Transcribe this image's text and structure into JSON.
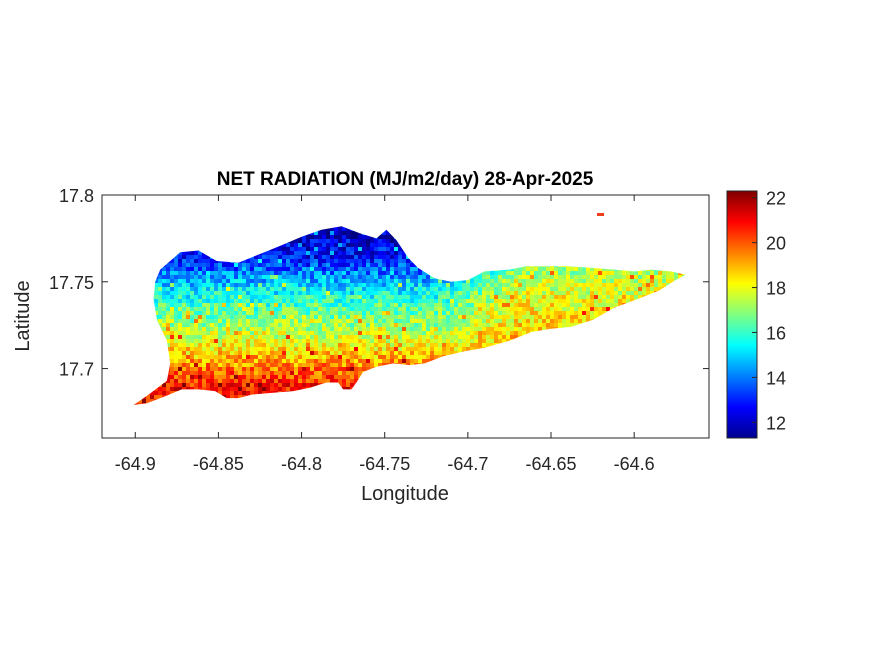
{
  "chart_data": {
    "type": "heatmap",
    "title": "NET RADIATION (MJ/m2/day) 28-Apr-2025",
    "xlabel": "Longitude",
    "ylabel": "Latitude",
    "xlim": [
      -64.92,
      -64.555
    ],
    "ylim": [
      17.66,
      17.8
    ],
    "x_ticks": [
      {
        "value": -64.9,
        "label": "-64.9"
      },
      {
        "value": -64.85,
        "label": "-64.85"
      },
      {
        "value": -64.8,
        "label": "-64.8"
      },
      {
        "value": -64.75,
        "label": "-64.75"
      },
      {
        "value": -64.7,
        "label": "-64.7"
      },
      {
        "value": -64.65,
        "label": "-64.65"
      },
      {
        "value": -64.6,
        "label": "-64.6"
      }
    ],
    "y_ticks": [
      {
        "value": 17.7,
        "label": "17.7"
      },
      {
        "value": 17.75,
        "label": "17.75"
      },
      {
        "value": 17.8,
        "label": "17.8"
      }
    ],
    "colorbar": {
      "colormap": "jet",
      "range": [
        11.3,
        22.3
      ],
      "ticks": [
        {
          "value": 12,
          "label": "12"
        },
        {
          "value": 14,
          "label": "14"
        },
        {
          "value": 16,
          "label": "16"
        },
        {
          "value": 18,
          "label": "18"
        },
        {
          "value": 20,
          "label": "20"
        },
        {
          "value": 22,
          "label": "22"
        }
      ]
    },
    "island_outline": [
      [
        -64.901,
        17.679
      ],
      [
        -64.892,
        17.685
      ],
      [
        -64.881,
        17.693
      ],
      [
        -64.879,
        17.703
      ],
      [
        -64.881,
        17.716
      ],
      [
        -64.887,
        17.728
      ],
      [
        -64.889,
        17.74
      ],
      [
        -64.888,
        17.75
      ],
      [
        -64.885,
        17.757
      ],
      [
        -64.879,
        17.762
      ],
      [
        -64.873,
        17.767
      ],
      [
        -64.862,
        17.768
      ],
      [
        -64.851,
        17.762
      ],
      [
        -64.838,
        17.761
      ],
      [
        -64.825,
        17.766
      ],
      [
        -64.812,
        17.771
      ],
      [
        -64.8,
        17.776
      ],
      [
        -64.788,
        17.78
      ],
      [
        -64.776,
        17.782
      ],
      [
        -64.765,
        17.778
      ],
      [
        -64.755,
        17.775
      ],
      [
        -64.749,
        17.78
      ],
      [
        -64.743,
        17.774
      ],
      [
        -64.736,
        17.764
      ],
      [
        -64.73,
        17.758
      ],
      [
        -64.72,
        17.752
      ],
      [
        -64.71,
        17.75
      ],
      [
        -64.7,
        17.751
      ],
      [
        -64.69,
        17.756
      ],
      [
        -64.675,
        17.757
      ],
      [
        -64.665,
        17.759
      ],
      [
        -64.655,
        17.759
      ],
      [
        -64.64,
        17.759
      ],
      [
        -64.625,
        17.758
      ],
      [
        -64.612,
        17.757
      ],
      [
        -64.6,
        17.756
      ],
      [
        -64.59,
        17.757
      ],
      [
        -64.578,
        17.756
      ],
      [
        -64.569,
        17.754
      ],
      [
        -64.575,
        17.751
      ],
      [
        -64.585,
        17.745
      ],
      [
        -64.598,
        17.74
      ],
      [
        -64.612,
        17.735
      ],
      [
        -64.625,
        17.728
      ],
      [
        -64.638,
        17.724
      ],
      [
        -64.65,
        17.723
      ],
      [
        -64.662,
        17.721
      ],
      [
        -64.675,
        17.716
      ],
      [
        -64.69,
        17.712
      ],
      [
        -64.702,
        17.71
      ],
      [
        -64.715,
        17.707
      ],
      [
        -64.726,
        17.703
      ],
      [
        -64.735,
        17.702
      ],
      [
        -64.745,
        17.703
      ],
      [
        -64.755,
        17.701
      ],
      [
        -64.763,
        17.698
      ],
      [
        -64.767,
        17.692
      ],
      [
        -64.77,
        17.688
      ],
      [
        -64.775,
        17.688
      ],
      [
        -64.778,
        17.692
      ],
      [
        -64.785,
        17.692
      ],
      [
        -64.795,
        17.689
      ],
      [
        -64.805,
        17.687
      ],
      [
        -64.818,
        17.686
      ],
      [
        -64.83,
        17.685
      ],
      [
        -64.838,
        17.683
      ],
      [
        -64.845,
        17.683
      ],
      [
        -64.852,
        17.687
      ],
      [
        -64.862,
        17.688
      ],
      [
        -64.872,
        17.688
      ],
      [
        -64.882,
        17.684
      ],
      [
        -64.893,
        17.68
      ]
    ],
    "value_field": {
      "gradient": [
        {
          "latitude": 17.69,
          "value": 20.8
        },
        {
          "latitude": 17.705,
          "value": 19.2
        },
        {
          "latitude": 17.72,
          "value": 17.6
        },
        {
          "latitude": 17.735,
          "value": 16.4
        },
        {
          "latitude": 17.75,
          "value": 14.9
        },
        {
          "latitude": 17.765,
          "value": 12.8
        },
        {
          "latitude": 17.78,
          "value": 12.0
        }
      ],
      "eastern_region": {
        "min_longitude": -64.72,
        "value": 19.5
      }
    }
  }
}
